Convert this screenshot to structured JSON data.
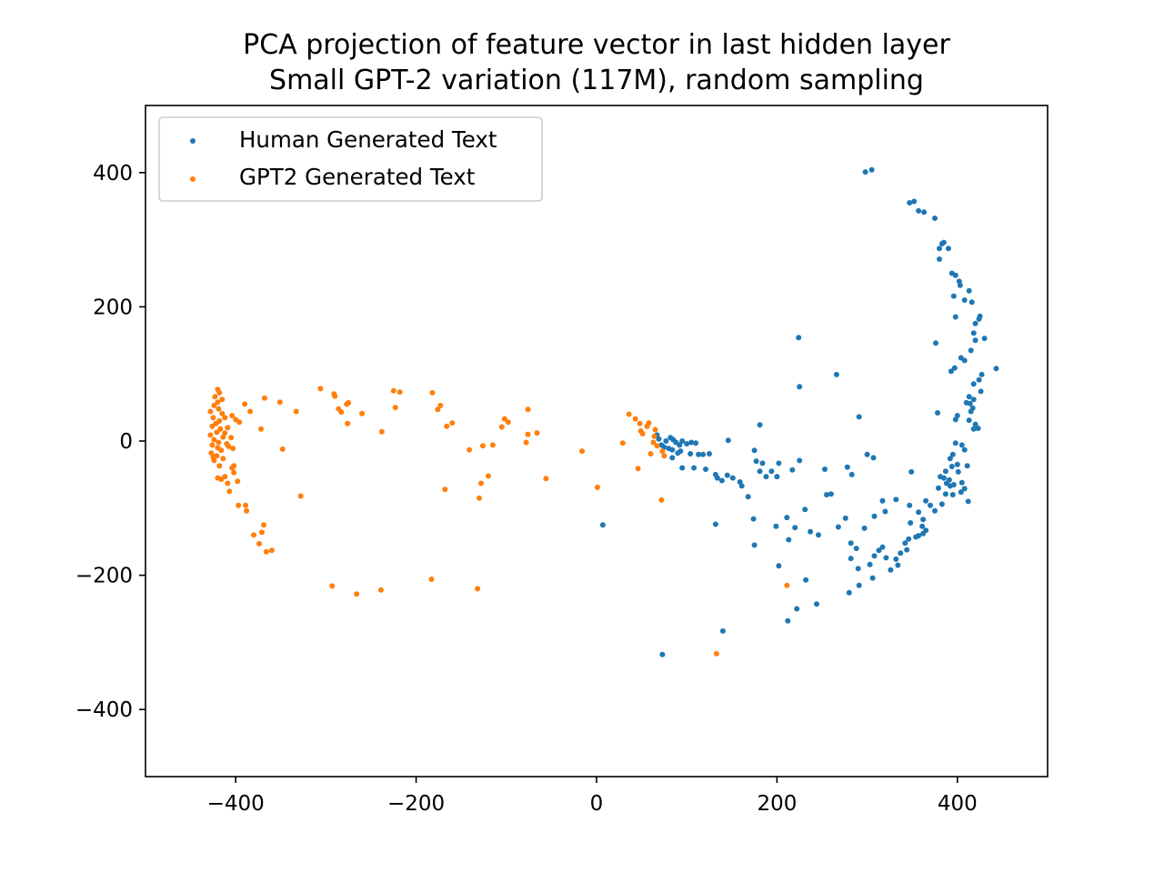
{
  "chart_data": {
    "type": "scatter",
    "title": "PCA projection of feature vector in last hidden layer",
    "subtitle": "Small GPT-2 variation (117M), random sampling",
    "xlabel": "",
    "ylabel": "",
    "xlim": [
      -500,
      500
    ],
    "ylim": [
      -500,
      500
    ],
    "xticks": [
      -400,
      -200,
      0,
      200,
      400
    ],
    "yticks": [
      -400,
      -200,
      0,
      200,
      400
    ],
    "grid": false,
    "legend_position": "top-left",
    "series": [
      {
        "name": "Human Generated Text",
        "color": "#1f77b4",
        "points": [
          [
            298,
            401
          ],
          [
            305,
            404
          ],
          [
            347,
            355
          ],
          [
            352,
            357
          ],
          [
            357,
            343
          ],
          [
            363,
            341
          ],
          [
            375,
            332
          ],
          [
            380,
            287
          ],
          [
            383,
            294
          ],
          [
            385,
            296
          ],
          [
            390,
            287
          ],
          [
            380,
            271
          ],
          [
            394,
            250
          ],
          [
            398,
            247
          ],
          [
            402,
            238
          ],
          [
            403,
            232
          ],
          [
            396,
            216
          ],
          [
            413,
            224
          ],
          [
            408,
            210
          ],
          [
            416,
            207
          ],
          [
            398,
            185
          ],
          [
            425,
            186
          ],
          [
            424,
            182
          ],
          [
            420,
            175
          ],
          [
            418,
            161
          ],
          [
            420,
            150
          ],
          [
            430,
            153
          ],
          [
            415,
            135
          ],
          [
            376,
            146
          ],
          [
            224,
            154
          ],
          [
            266,
            99
          ],
          [
            404,
            124
          ],
          [
            408,
            120
          ],
          [
            393,
            104
          ],
          [
            397,
            109
          ],
          [
            443,
            108
          ],
          [
            427,
            99
          ],
          [
            424,
            91
          ],
          [
            418,
            85
          ],
          [
            426,
            74
          ],
          [
            413,
            66
          ],
          [
            418,
            62
          ],
          [
            410,
            57
          ],
          [
            414,
            56
          ],
          [
            417,
            49
          ],
          [
            415,
            44
          ],
          [
            378,
            42
          ],
          [
            400,
            38
          ],
          [
            398,
            32
          ],
          [
            413,
            31
          ],
          [
            420,
            25
          ],
          [
            418,
            18
          ],
          [
            423,
            19
          ],
          [
            291,
            36
          ],
          [
            67,
            9
          ],
          [
            69,
            3
          ],
          [
            77,
            0
          ],
          [
            82,
            5
          ],
          [
            85,
            2
          ],
          [
            88,
            -2
          ],
          [
            95,
            0
          ],
          [
            92,
            -6
          ],
          [
            100,
            -4
          ],
          [
            105,
            -2
          ],
          [
            110,
            -3
          ],
          [
            72,
            -6
          ],
          [
            75,
            -9
          ],
          [
            80,
            -11
          ],
          [
            84,
            -13
          ],
          [
            90,
            -18
          ],
          [
            93,
            -15
          ],
          [
            104,
            -19
          ],
          [
            113,
            -20
          ],
          [
            118,
            -20
          ],
          [
            125,
            -19
          ],
          [
            84,
            -25
          ],
          [
            95,
            -40
          ],
          [
            108,
            -40
          ],
          [
            121,
            -42
          ],
          [
            146,
            1
          ],
          [
            175,
            -14
          ],
          [
            181,
            24
          ],
          [
            405,
            -6
          ],
          [
            398,
            -3
          ],
          [
            408,
            -13
          ],
          [
            395,
            -20
          ],
          [
            392,
            -26
          ],
          [
            400,
            -35
          ],
          [
            411,
            -37
          ],
          [
            387,
            -45
          ],
          [
            394,
            -38
          ],
          [
            401,
            -46
          ],
          [
            385,
            -55
          ],
          [
            391,
            -58
          ],
          [
            396,
            -65
          ],
          [
            405,
            -62
          ],
          [
            408,
            -71
          ],
          [
            388,
            -63
          ],
          [
            392,
            -67
          ],
          [
            381,
            -53
          ],
          [
            379,
            -70
          ],
          [
            387,
            -79
          ],
          [
            395,
            -80
          ],
          [
            404,
            -76
          ],
          [
            412,
            -90
          ],
          [
            383,
            -94
          ],
          [
            375,
            -104
          ],
          [
            365,
            -89
          ],
          [
            370,
            -96
          ],
          [
            357,
            -106
          ],
          [
            362,
            -117
          ],
          [
            361,
            -127
          ],
          [
            365,
            -133
          ],
          [
            362,
            -138
          ],
          [
            357,
            -141
          ],
          [
            354,
            -143
          ],
          [
            346,
            -146
          ],
          [
            342,
            -152
          ],
          [
            344,
            -162
          ],
          [
            337,
            -167
          ],
          [
            332,
            -176
          ],
          [
            334,
            -185
          ],
          [
            326,
            -192
          ],
          [
            321,
            -174
          ],
          [
            317,
            -158
          ],
          [
            313,
            -163
          ],
          [
            308,
            -171
          ],
          [
            303,
            -184
          ],
          [
            306,
            -204
          ],
          [
            291,
            -215
          ],
          [
            280,
            -226
          ],
          [
            282,
            -152
          ],
          [
            288,
            -160
          ],
          [
            276,
            -115
          ],
          [
            268,
            -128
          ],
          [
            260,
            -79
          ],
          [
            278,
            -39
          ],
          [
            283,
            -50
          ],
          [
            244,
            -243
          ],
          [
            222,
            -250
          ],
          [
            212,
            -268
          ],
          [
            232,
            -207
          ],
          [
            290,
            -190
          ],
          [
            202,
            -186
          ],
          [
            300,
            -20
          ],
          [
            307,
            -25
          ],
          [
            349,
            -46
          ],
          [
            348,
            -122
          ],
          [
            347,
            -96
          ],
          [
            320,
            -105
          ],
          [
            332,
            -87
          ],
          [
            317,
            -89
          ],
          [
            253,
            -42
          ],
          [
            225,
            -29
          ],
          [
            202,
            -33
          ],
          [
            217,
            -43
          ],
          [
            145,
            -51
          ],
          [
            151,
            -55
          ],
          [
            159,
            -61
          ],
          [
            161,
            -67
          ],
          [
            168,
            -83
          ],
          [
            181,
            -45
          ],
          [
            188,
            -53
          ],
          [
            194,
            -45
          ],
          [
            184,
            -33
          ],
          [
            177,
            -30
          ],
          [
            174,
            -116
          ],
          [
            175,
            -155
          ],
          [
            199,
            -127
          ],
          [
            211,
            -114
          ],
          [
            213,
            -147
          ],
          [
            220,
            -129
          ],
          [
            231,
            -102
          ],
          [
            237,
            -135
          ],
          [
            246,
            -140
          ],
          [
            282,
            -175
          ],
          [
            297,
            -130
          ],
          [
            308,
            -112
          ],
          [
            134,
            -55
          ],
          [
            132,
            -50
          ],
          [
            132,
            -124
          ],
          [
            139,
            -59
          ],
          [
            140,
            -283
          ],
          [
            73,
            -318
          ],
          [
            7,
            -125
          ],
          [
            225,
            81
          ],
          [
            200,
            -53
          ],
          [
            255,
            -80
          ]
        ]
      },
      {
        "name": "GPT2 Generated Text",
        "color": "#ff7f0e",
        "points": [
          [
            -420,
            77
          ],
          [
            -418,
            72
          ],
          [
            -423,
            66
          ],
          [
            -415,
            62
          ],
          [
            -420,
            58
          ],
          [
            -424,
            53
          ],
          [
            -419,
            48
          ],
          [
            -428,
            44
          ],
          [
            -415,
            41
          ],
          [
            -425,
            35
          ],
          [
            -418,
            30
          ],
          [
            -422,
            26
          ],
          [
            -426,
            22
          ],
          [
            -417,
            18
          ],
          [
            -421,
            13
          ],
          [
            -428,
            9
          ],
          [
            -414,
            6
          ],
          [
            -424,
            2
          ],
          [
            -419,
            -2
          ],
          [
            -426,
            -6
          ],
          [
            -420,
            -10
          ],
          [
            -416,
            -14
          ],
          [
            -427,
            -18
          ],
          [
            -421,
            -22
          ],
          [
            -414,
            -26
          ],
          [
            -424,
            -29
          ],
          [
            -410,
            -4
          ],
          [
            -409,
            20
          ],
          [
            -412,
            12
          ],
          [
            -408,
            -8
          ],
          [
            -405,
            5
          ],
          [
            -403,
            -11
          ],
          [
            -400,
            32
          ],
          [
            -404,
            38
          ],
          [
            -396,
            28
          ],
          [
            -404,
            -40
          ],
          [
            -402,
            -47
          ],
          [
            -412,
            -53
          ],
          [
            -398,
            -60
          ],
          [
            -409,
            -63
          ],
          [
            -416,
            -57
          ],
          [
            -420,
            -55
          ],
          [
            -407,
            -75
          ],
          [
            -397,
            -96
          ],
          [
            -388,
            -104
          ],
          [
            -380,
            -140
          ],
          [
            -371,
            -136
          ],
          [
            -366,
            -165
          ],
          [
            -360,
            -163
          ],
          [
            -374,
            -153
          ],
          [
            -369,
            -125
          ],
          [
            -390,
            55
          ],
          [
            -384,
            44
          ],
          [
            -372,
            18
          ],
          [
            -368,
            64
          ],
          [
            -351,
            58
          ],
          [
            -348,
            -12
          ],
          [
            -333,
            44
          ],
          [
            -328,
            -82
          ],
          [
            -306,
            78
          ],
          [
            -291,
            70
          ],
          [
            -290,
            67
          ],
          [
            -286,
            48
          ],
          [
            -283,
            43
          ],
          [
            -277,
            55
          ],
          [
            -276,
            26
          ],
          [
            -260,
            41
          ],
          [
            -238,
            14
          ],
          [
            -225,
            75
          ],
          [
            -223,
            50
          ],
          [
            -218,
            73
          ],
          [
            -182,
            72
          ],
          [
            -176,
            47
          ],
          [
            -173,
            53
          ],
          [
            -166,
            22
          ],
          [
            -160,
            27
          ],
          [
            -168,
            -72
          ],
          [
            -130,
            -85
          ],
          [
            -132,
            -220
          ],
          [
            -183,
            -206
          ],
          [
            -239,
            -222
          ],
          [
            -266,
            -228
          ],
          [
            -293,
            -216
          ],
          [
            -141,
            -13
          ],
          [
            -126,
            -7
          ],
          [
            -115,
            -6
          ],
          [
            -128,
            -63
          ],
          [
            -120,
            -52
          ],
          [
            -105,
            21
          ],
          [
            -102,
            33
          ],
          [
            -98,
            28
          ],
          [
            -76,
            47
          ],
          [
            -76,
            10
          ],
          [
            -78,
            -2
          ],
          [
            -66,
            12
          ],
          [
            -56,
            -56
          ],
          [
            -16,
            -15
          ],
          [
            1,
            -69
          ],
          [
            29,
            -3
          ],
          [
            36,
            40
          ],
          [
            43,
            33
          ],
          [
            48,
            26
          ],
          [
            49,
            15
          ],
          [
            51,
            11
          ],
          [
            56,
            22
          ],
          [
            58,
            27
          ],
          [
            60,
            -19
          ],
          [
            63,
            -2
          ],
          [
            64,
            7
          ],
          [
            65,
            17
          ],
          [
            67,
            -7
          ],
          [
            73,
            -15
          ],
          [
            75,
            -22
          ],
          [
            46,
            -41
          ],
          [
            72,
            -88
          ],
          [
            211,
            -215
          ],
          [
            133,
            -317
          ],
          [
            -275,
            57
          ],
          [
            -412,
            35
          ],
          [
            -425,
            -24
          ],
          [
            -418,
            -37
          ],
          [
            -402,
            -37
          ],
          [
            -389,
            -96
          ]
        ]
      }
    ]
  }
}
